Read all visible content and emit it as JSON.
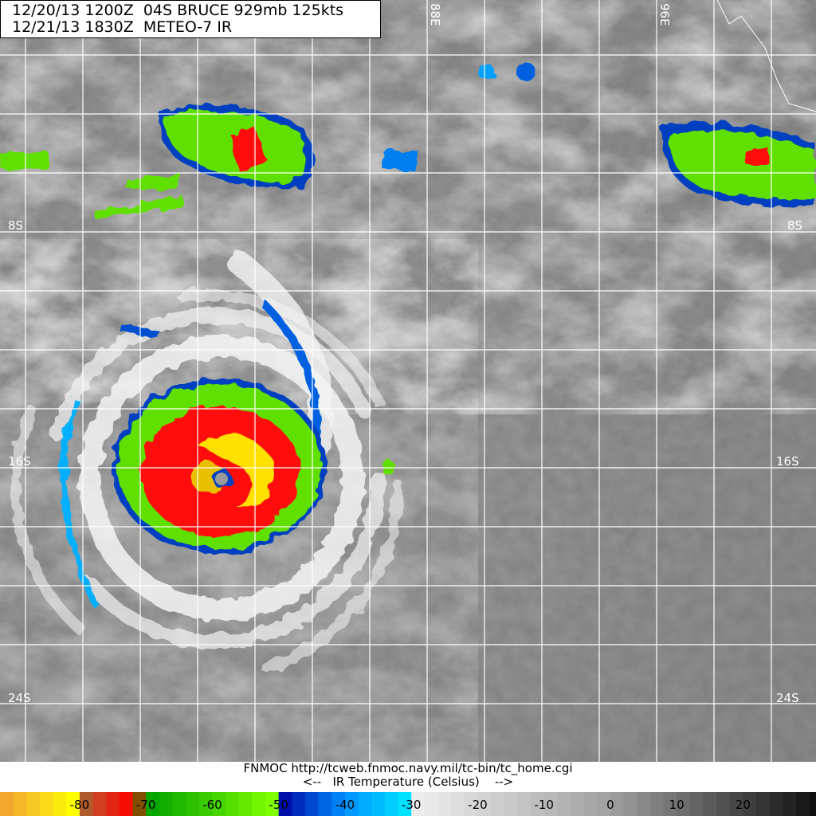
{
  "header": {
    "line1": "12/20/13 1200Z  04S BRUCE 929mb 125kts",
    "line2": "12/21/13 1830Z  METEO-7 IR"
  },
  "grid_labels": {
    "longitudes": [
      "88E",
      "96E"
    ],
    "latitudes": [
      "8S",
      "16S",
      "24S"
    ]
  },
  "footer": {
    "source": "FNMOC http://tcweb.fnmoc.navy.mil/tc-bin/tc_home.cgi",
    "legend_title": "<--   IR Temperature (Celsius)    -->"
  },
  "colorbar": {
    "tick_labels": [
      "-80",
      "-70",
      "-60",
      "-50",
      "-40",
      "-30",
      "-20",
      "-10",
      "0",
      "10",
      "20"
    ],
    "ticks": [
      -80,
      -70,
      -60,
      -50,
      -40,
      -30,
      -20,
      -10,
      0,
      10,
      20
    ],
    "range": [
      -92,
      31
    ],
    "stops": [
      {
        "t": -92,
        "color": "#f0a030"
      },
      {
        "t": -86,
        "color": "#f8d020"
      },
      {
        "t": -81,
        "color": "#ffff00"
      },
      {
        "t": -80,
        "color": "#a06830"
      },
      {
        "t": -77,
        "color": "#d04020"
      },
      {
        "t": -72,
        "color": "#ff0000"
      },
      {
        "t": -70,
        "color": "#00a000"
      },
      {
        "t": -60,
        "color": "#40d000"
      },
      {
        "t": -51,
        "color": "#80ff00"
      },
      {
        "t": -50,
        "color": "#0000a0"
      },
      {
        "t": -40,
        "color": "#0090ff"
      },
      {
        "t": -31,
        "color": "#00e0ff"
      },
      {
        "t": -30,
        "color": "#f0f0f0"
      },
      {
        "t": 0,
        "color": "#a0a0a0"
      },
      {
        "t": 31,
        "color": "#101010"
      }
    ]
  },
  "storm": {
    "name": "BRUCE",
    "id": "04S"
  }
}
